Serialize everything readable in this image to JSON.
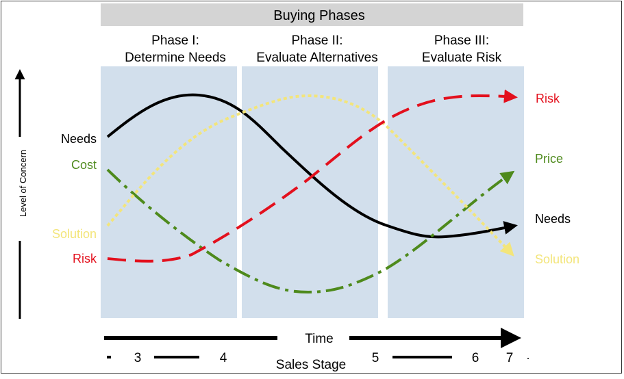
{
  "header": {
    "title": "Buying Phases"
  },
  "phases": [
    {
      "line1": "Phase I:",
      "line2": "Determine Needs"
    },
    {
      "line1": "Phase II:",
      "line2": "Evaluate Alternatives"
    },
    {
      "line1": "Phase III:",
      "line2": "Evaluate Risk"
    }
  ],
  "y_axis": {
    "label": "Level of Concern"
  },
  "x_axis": {
    "time_label": "Time",
    "stage_label": "Sales Stage",
    "stages": [
      "3",
      "4",
      "5",
      "6",
      "7"
    ]
  },
  "curves": [
    {
      "name": "Needs",
      "end_label": "Needs",
      "color": "#000000",
      "style": "solid"
    },
    {
      "name": "Cost",
      "end_label": "Price",
      "color": "#4e8a1c",
      "style": "dash-dot"
    },
    {
      "name": "Solution",
      "end_label": "Solution",
      "color": "#f3e57a",
      "style": "dotted"
    },
    {
      "name": "Risk",
      "end_label": "Risk",
      "color": "#e3101d",
      "style": "dashed"
    }
  ]
}
